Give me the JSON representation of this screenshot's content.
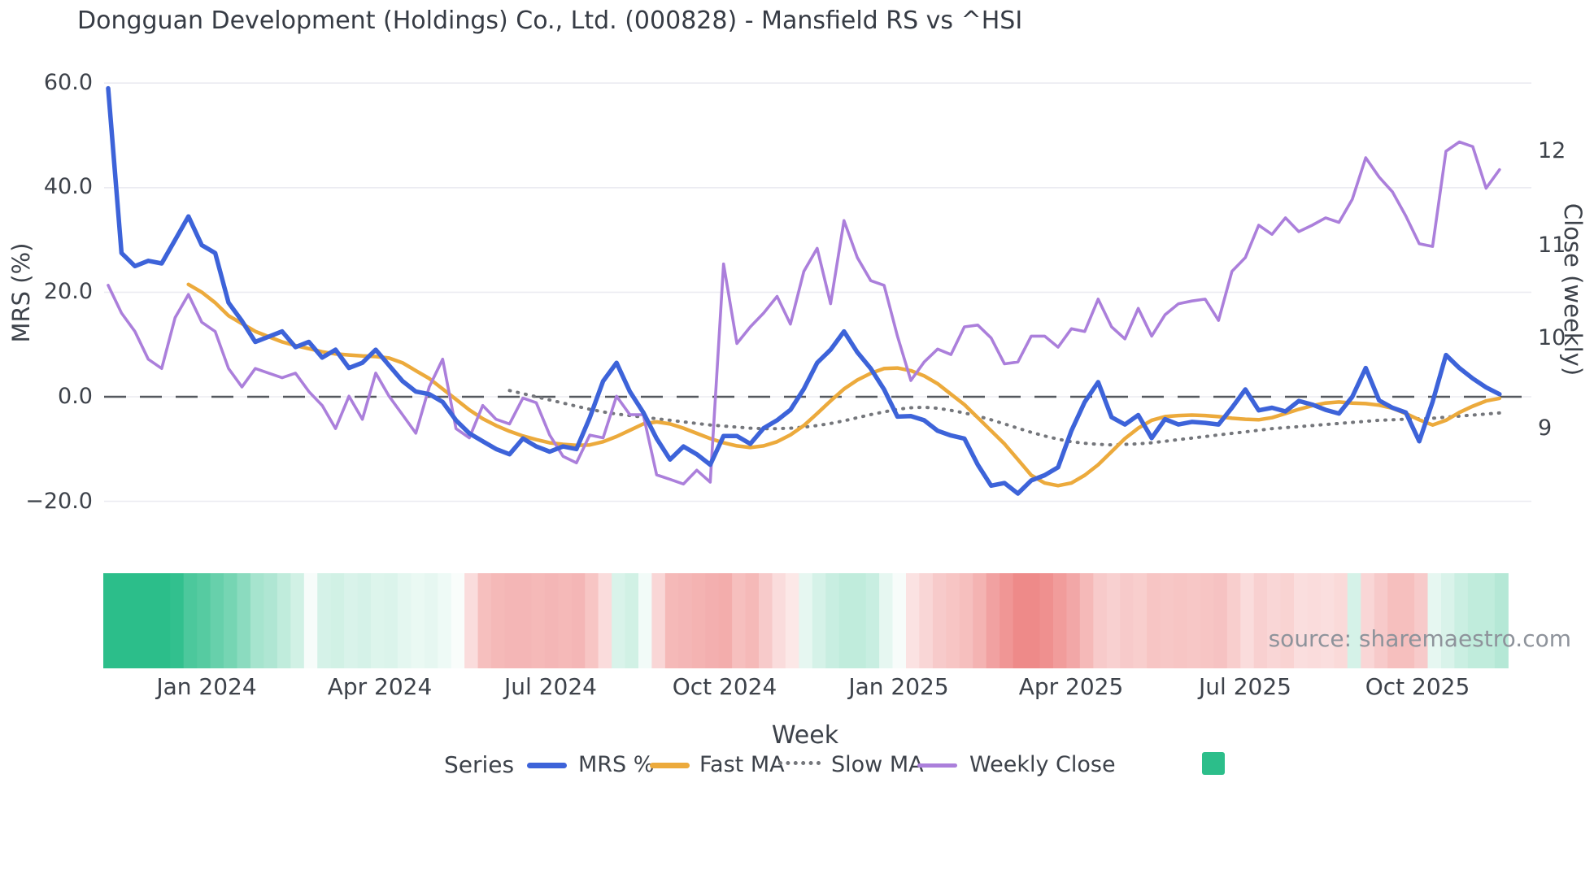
{
  "title": "Dongguan Development (Holdings) Co., Ltd. (000828) - Mansfield RS vs ^HSI",
  "source_note": "source: sharemaestro.com",
  "axes": {
    "left": {
      "title": "MRS (%)",
      "ticks": [
        {
          "label": "60.0",
          "value": 60
        },
        {
          "label": "40.0",
          "value": 40
        },
        {
          "label": "20.0",
          "value": 20
        },
        {
          "label": "0.0",
          "value": 0
        },
        {
          "label": "−20.0",
          "value": -20
        }
      ]
    },
    "right": {
      "title": "Close (weekly)",
      "ticks": [
        {
          "label": "12",
          "value": 12
        },
        {
          "label": "11",
          "value": 11
        },
        {
          "label": "10",
          "value": 10
        },
        {
          "label": "9",
          "value": 9
        }
      ]
    },
    "x": {
      "title": "Week",
      "ticks": [
        {
          "label": "Jan 2024",
          "week": 7.36
        },
        {
          "label": "Apr 2024",
          "week": 20.3
        },
        {
          "label": "Jul 2024",
          "week": 33.1
        },
        {
          "label": "Oct 2024",
          "week": 46.1
        },
        {
          "label": "Jan 2025",
          "week": 59.1
        },
        {
          "label": "Apr 2025",
          "week": 72.0
        },
        {
          "label": "Jul 2025",
          "week": 85.0
        },
        {
          "label": "Oct 2025",
          "week": 97.9
        }
      ]
    }
  },
  "legend": {
    "title": "Series",
    "items": [
      {
        "label": "MRS %",
        "swatch": "line",
        "color": "#3d63d9"
      },
      {
        "label": "Fast MA",
        "swatch": "line",
        "color": "#ecaa3c"
      },
      {
        "label": "Slow MA",
        "swatch": "dotted-line",
        "color": "#74767b"
      },
      {
        "label": "Weekly Close",
        "swatch": "line",
        "color": "#ab7fdb"
      },
      {
        "label": "",
        "swatch": "square",
        "color": "#2cbe8a"
      }
    ]
  },
  "colors": {
    "grid": "#ebebf1",
    "zero_line": "#55595f",
    "text": "#3d424a",
    "source_text": "#8e939b",
    "mrs": "#3d63d9",
    "fast_ma": "#ecaa3c",
    "slow_ma": "#74767b",
    "weekly_close": "#ab7fdb",
    "heat_positive": "#2cbe8a",
    "heat_negative": "#ee8a89"
  },
  "chart_data": {
    "type": "line",
    "title": "Dongguan Development (Holdings) Co., Ltd. (000828) - Mansfield RS vs ^HSI",
    "xlabel": "Week",
    "ylabel_left": "MRS (%)",
    "ylabel_right": "Close (weekly)",
    "x_unit": "week_index (0 = late Nov 2023, weekly steps)",
    "left_ylim": [
      -27,
      63
    ],
    "right_ylim": [
      8.1,
      12.95
    ],
    "zero_reference_line": 0,
    "grid": true,
    "legend_position": "bottom",
    "series": [
      {
        "name": "MRS %",
        "axis": "left",
        "style": "solid",
        "color": "#3d63d9",
        "start_week": 0,
        "values": [
          59,
          27.5,
          25,
          26,
          25.5,
          30,
          34.5,
          29,
          27.5,
          18,
          14.5,
          10.5,
          11.5,
          12.5,
          9.5,
          10.5,
          7.5,
          9,
          5.5,
          6.5,
          9,
          6,
          3,
          1,
          0.5,
          -1,
          -4.5,
          -7,
          -8.5,
          -10,
          -11,
          -8,
          -9.5,
          -10.5,
          -9.5,
          -10,
          -4,
          3,
          6.5,
          1,
          -3,
          -8,
          -12,
          -9.5,
          -11,
          -13,
          -7.5,
          -7.5,
          -9,
          -6,
          -4.5,
          -2.5,
          1.5,
          6.5,
          9,
          12.5,
          8.5,
          5.4,
          1.4,
          -3.8,
          -3.7,
          -4.5,
          -6.5,
          -7.4,
          -8,
          -13,
          -17,
          -16.5,
          -18.5,
          -16,
          -15,
          -13.5,
          -6.5,
          -1,
          2.8,
          -3.9,
          -5.3,
          -3.5,
          -7.9,
          -4.3,
          -5.3,
          -4.8,
          -5,
          -5.3,
          -2.1,
          1.4,
          -2.6,
          -2.1,
          -2.8,
          -0.8,
          -1.5,
          -2.5,
          -3.2,
          0,
          5.5,
          -0.7,
          -2.1,
          -3,
          -8.5,
          -1,
          8,
          5.5,
          3.5,
          1.8,
          0.5
        ]
      },
      {
        "name": "Fast MA",
        "axis": "left",
        "style": "solid",
        "color": "#ecaa3c",
        "start_week": 6,
        "values": [
          21.5,
          20,
          18,
          15.5,
          14,
          12.5,
          11.5,
          10.5,
          9.8,
          9.2,
          8.6,
          8.2,
          8,
          7.8,
          7.7,
          7.4,
          6.5,
          5,
          3.5,
          1.5,
          -0.5,
          -2.5,
          -4.2,
          -5.5,
          -6.6,
          -7.5,
          -8.2,
          -8.8,
          -9.1,
          -9.3,
          -9.2,
          -8.6,
          -7.6,
          -6.4,
          -5.2,
          -4.8,
          -5.2,
          -6,
          -7,
          -8,
          -8.8,
          -9.4,
          -9.7,
          -9.4,
          -8.6,
          -7.3,
          -5.5,
          -3.2,
          -0.8,
          1.5,
          3.2,
          4.5,
          5.4,
          5.5,
          5,
          4,
          2.5,
          0.5,
          -1.5,
          -4,
          -6.5,
          -9,
          -12,
          -15,
          -16.5,
          -17,
          -16.5,
          -15,
          -13,
          -10.5,
          -8,
          -6,
          -4.5,
          -3.8,
          -3.6,
          -3.5,
          -3.6,
          -3.8,
          -4.1,
          -4.3,
          -4.4,
          -4,
          -3.2,
          -2.4,
          -1.7,
          -1.2,
          -1,
          -1.2,
          -1.3,
          -1.6,
          -2.2,
          -3.2,
          -4.4,
          -5.4,
          -4.5,
          -3,
          -1.8,
          -0.8,
          -0.3
        ]
      },
      {
        "name": "Slow MA",
        "axis": "left",
        "style": "dotted",
        "color": "#74767b",
        "start_week": 30,
        "values": [
          1.2,
          0.6,
          0,
          -0.6,
          -1.2,
          -1.8,
          -2.4,
          -2.9,
          -3.3,
          -3.6,
          -3.9,
          -4.2,
          -4.5,
          -4.8,
          -5.1,
          -5.4,
          -5.6,
          -5.8,
          -6,
          -6.1,
          -6.1,
          -6,
          -5.8,
          -5.5,
          -5.1,
          -4.6,
          -4,
          -3.4,
          -2.9,
          -2.4,
          -2.1,
          -2,
          -2.2,
          -2.6,
          -3.1,
          -3.7,
          -4.4,
          -5.2,
          -6,
          -6.8,
          -7.5,
          -8.1,
          -8.6,
          -8.9,
          -9.1,
          -9.2,
          -9.1,
          -9,
          -8.8,
          -8.5,
          -8.2,
          -7.9,
          -7.6,
          -7.3,
          -7,
          -6.7,
          -6.4,
          -6.1,
          -5.9,
          -5.7,
          -5.5,
          -5.3,
          -5.1,
          -4.9,
          -4.7,
          -4.5,
          -4.4,
          -4.3,
          -4.2,
          -4.1,
          -3.9,
          -3.7,
          -3.5,
          -3.3,
          -3.1
        ]
      },
      {
        "name": "Weekly Close",
        "axis": "right",
        "style": "solid",
        "color": "#ab7fdb",
        "start_week": 0,
        "values": [
          10.55,
          10.25,
          10.05,
          9.75,
          9.65,
          10.2,
          10.45,
          10.15,
          10.05,
          9.65,
          9.45,
          9.65,
          9.6,
          9.55,
          9.6,
          9.4,
          9.25,
          9.0,
          9.35,
          9.1,
          9.6,
          9.35,
          9.15,
          8.95,
          9.45,
          9.75,
          9.0,
          8.9,
          9.25,
          9.1,
          9.05,
          9.33,
          9.28,
          8.93,
          8.7,
          8.63,
          8.93,
          8.9,
          9.35,
          9.15,
          9.15,
          8.5,
          8.45,
          8.4,
          8.55,
          8.42,
          10.78,
          9.92,
          10.1,
          10.25,
          10.43,
          10.13,
          10.7,
          10.95,
          10.35,
          11.25,
          10.85,
          10.6,
          10.55,
          10.0,
          9.52,
          9.72,
          9.86,
          9.8,
          10.1,
          10.12,
          9.98,
          9.7,
          9.72,
          10.0,
          10.0,
          9.88,
          10.08,
          10.05,
          10.4,
          10.1,
          9.97,
          10.3,
          10.0,
          10.23,
          10.35,
          10.38,
          10.4,
          10.17,
          10.7,
          10.85,
          11.2,
          11.1,
          11.28,
          11.13,
          11.2,
          11.28,
          11.23,
          11.48,
          11.93,
          11.72,
          11.56,
          11.3,
          11.0,
          10.97,
          12.0,
          12.1,
          12.05,
          11.6,
          11.8
        ]
      },
      {
        "name": "Heatmap strip",
        "axis": "none",
        "style": "heatmap-band",
        "start_week": 0,
        "note": "weekly relative-strength intensity, +1 = saturated green, -1 = saturated red",
        "values": [
          1,
          1,
          1,
          1,
          1,
          0.97,
          0.85,
          0.8,
          0.72,
          0.65,
          0.55,
          0.42,
          0.38,
          0.3,
          0.22,
          0.04,
          0.2,
          0.22,
          0.18,
          0.2,
          0.16,
          0.17,
          0.13,
          0.1,
          0.12,
          0.08,
          0.03,
          -0.3,
          -0.55,
          -0.6,
          -0.62,
          -0.62,
          -0.6,
          -0.62,
          -0.6,
          -0.62,
          -0.5,
          -0.3,
          0.18,
          0.22,
          0.06,
          -0.35,
          -0.6,
          -0.62,
          -0.65,
          -0.68,
          -0.7,
          -0.55,
          -0.6,
          -0.45,
          -0.3,
          -0.2,
          0.12,
          0.2,
          0.26,
          0.3,
          0.3,
          0.26,
          0.12,
          0.04,
          -0.25,
          -0.35,
          -0.45,
          -0.5,
          -0.55,
          -0.65,
          -0.8,
          -0.9,
          -1,
          -1,
          -0.95,
          -0.85,
          -0.75,
          -0.6,
          -0.45,
          -0.4,
          -0.45,
          -0.42,
          -0.5,
          -0.48,
          -0.5,
          -0.48,
          -0.5,
          -0.52,
          -0.42,
          -0.3,
          -0.4,
          -0.35,
          -0.38,
          -0.28,
          -0.3,
          -0.28,
          -0.32,
          0.2,
          -0.35,
          -0.45,
          -0.55,
          -0.55,
          -0.45,
          0.12,
          0.18,
          0.25,
          0.3,
          0.3,
          0.35
        ]
      }
    ]
  }
}
